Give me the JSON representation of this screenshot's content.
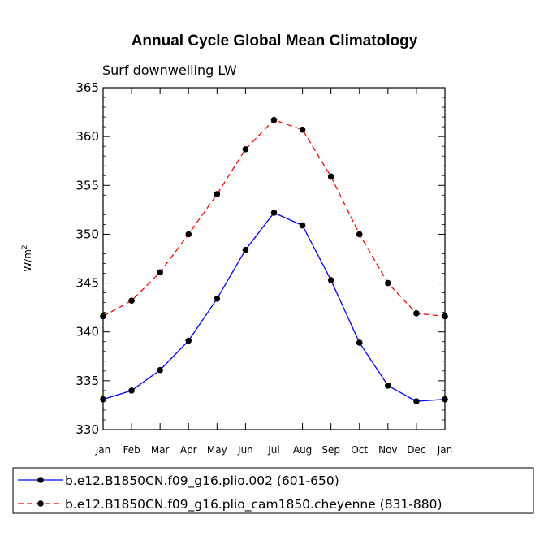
{
  "chart_data": {
    "type": "line",
    "title": "Annual Cycle Global Mean Climatology",
    "subtitle": "Surf downwelling LW",
    "ylabel": "W/m",
    "ylabel_sup": "2",
    "ylim": [
      330,
      365
    ],
    "yticks": [
      330,
      335,
      340,
      345,
      350,
      355,
      360,
      365
    ],
    "categories": [
      "Jan",
      "Feb",
      "Mar",
      "Apr",
      "May",
      "Jun",
      "Jul",
      "Aug",
      "Sep",
      "Oct",
      "Nov",
      "Dec",
      "Jan"
    ],
    "grid": false,
    "legend_position": "bottom",
    "series": [
      {
        "name": "b.e12.B1850CN.f09_g16.plio.002 (601-650)",
        "color": "#0000ff",
        "dash": "solid",
        "values": [
          333.1,
          334.0,
          336.1,
          339.1,
          343.4,
          348.4,
          352.2,
          350.9,
          345.3,
          338.9,
          334.5,
          332.9,
          333.1
        ]
      },
      {
        "name": "b.e12.B1850CN.f09_g16.plio_cam1850.cheyenne (831-880)",
        "color": "#ff0000",
        "dash": "dashed",
        "values": [
          341.6,
          343.2,
          346.1,
          350.0,
          354.1,
          358.7,
          361.7,
          360.7,
          355.9,
          350.0,
          345.0,
          341.9,
          341.6
        ]
      }
    ]
  }
}
